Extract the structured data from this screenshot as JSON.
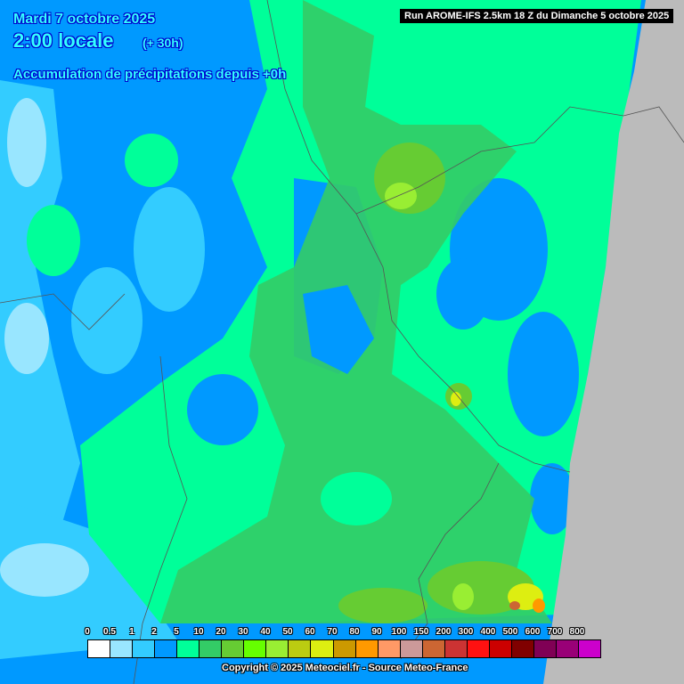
{
  "header": {
    "date": "Mardi 7 octobre 2025",
    "time": "2:00 locale",
    "lead": "(+ 30h)",
    "title": "Accumulation de précipitations depuis +0h",
    "run": "Run AROME-IFS 2.5km 18 Z du Dimanche 5 octobre 2025"
  },
  "legend": {
    "labels": [
      "0",
      "0.5",
      "1",
      "2",
      "5",
      "10",
      "20",
      "30",
      "40",
      "50",
      "60",
      "70",
      "80",
      "90",
      "100",
      "150",
      "200",
      "300",
      "400",
      "500",
      "600",
      "700",
      "800"
    ],
    "colors": [
      "#ffffff",
      "#99e6ff",
      "#33ccff",
      "#0099ff",
      "#00ff99",
      "#33cc66",
      "#66cc33",
      "#66ff00",
      "#99ee33",
      "#bbcc11",
      "#ddee11",
      "#cc9900",
      "#ff9900",
      "#ff9966",
      "#cc9999",
      "#cc6633",
      "#cc3333",
      "#ff1111",
      "#cc0000",
      "#800000",
      "#800055",
      "#990077",
      "#cc00cc"
    ]
  },
  "map": {
    "outside_domain_color": "#bbbbbb"
  },
  "footer": {
    "copyright": "Copyright © 2025 Meteociel.fr - Source Meteo-France"
  }
}
